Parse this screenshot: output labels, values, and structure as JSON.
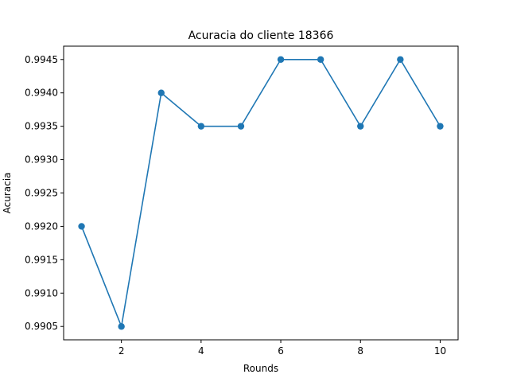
{
  "chart_data": {
    "type": "line",
    "title": "Acuracia do cliente 18366",
    "xlabel": "Rounds",
    "ylabel": "Acuracia",
    "x": [
      1,
      2,
      3,
      4,
      5,
      6,
      7,
      8,
      9,
      10
    ],
    "series": [
      {
        "values": [
          0.992,
          0.9905,
          0.994,
          0.9935,
          0.9935,
          0.9945,
          0.9945,
          0.9935,
          0.9945,
          0.9935
        ],
        "color": "#1f77b4",
        "marker": "circle"
      }
    ],
    "xlim": [
      0.55,
      10.45
    ],
    "ylim": [
      0.9903,
      0.9947
    ],
    "xticks": [
      2,
      4,
      6,
      8,
      10
    ],
    "xtick_labels": [
      "2",
      "4",
      "6",
      "8",
      "10"
    ],
    "yticks": [
      0.9905,
      0.991,
      0.9915,
      0.992,
      0.9925,
      0.993,
      0.9935,
      0.994,
      0.9945
    ],
    "ytick_labels": [
      "0.9905",
      "0.9910",
      "0.9915",
      "0.9920",
      "0.9925",
      "0.9930",
      "0.9935",
      "0.9940",
      "0.9945"
    ],
    "grid": false,
    "legend": "none"
  }
}
